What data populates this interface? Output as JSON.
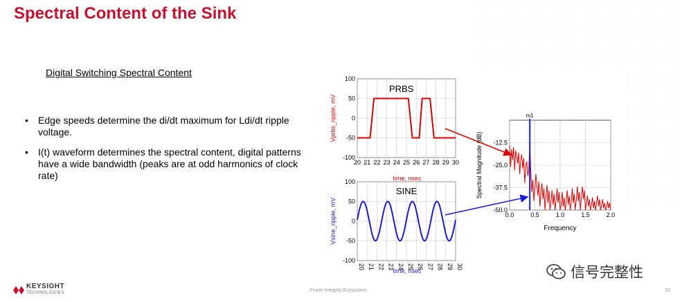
{
  "slide": {
    "title": "Spectral Content of the Sink",
    "subtitle": "Digital Switching Spectral Content",
    "bullets": [
      "Edge speeds determine the di/dt maximum for Ldi/dt ripple voltage.",
      "I(t) waveform determines the spectral content, digital patterns have a wide bandwidth (peaks are at odd harmonics of clock rate)"
    ],
    "footer": {
      "brand": "KEYSIGHT",
      "brand_sub": "TECHNOLOGIES",
      "center_text": "Power Integrity Ecosystem",
      "page_number": "10"
    },
    "watermark": "信号完整性",
    "colors": {
      "title": "#c8102e",
      "prbs": "#e00000",
      "sine": "#1a1adb",
      "spectrum": "#e00000"
    }
  },
  "chart_data": [
    {
      "type": "line",
      "label": "PRBS",
      "ylabel": "Vprbs_ripple, mV",
      "xlabel": "time, nsec",
      "xlim": [
        20,
        30
      ],
      "ylim": [
        -100,
        100
      ],
      "xticks": [
        "20",
        "21",
        "22",
        "23",
        "24",
        "25",
        "26",
        "27",
        "28",
        "29",
        "30"
      ],
      "yticks": [
        "100",
        "50",
        "0",
        "-50",
        "-100"
      ],
      "x": [
        20,
        21.3,
        21.7,
        25.2,
        25.6,
        26.3,
        26.6,
        27.0,
        27.4,
        27.8,
        30
      ],
      "y": [
        -50,
        -50,
        50,
        50,
        -50,
        -50,
        50,
        50,
        50,
        -50,
        -50
      ]
    },
    {
      "type": "line",
      "label": "SINE",
      "ylabel": "Vsine_ripple, mV",
      "xlabel": "time, nsec",
      "xlim": [
        20,
        30
      ],
      "ylim": [
        -100,
        100
      ],
      "xticks": [
        "20",
        "21",
        "22",
        "23",
        "24",
        "25",
        "26",
        "27",
        "28",
        "29",
        "30"
      ],
      "yticks": [
        "100",
        "50",
        "0",
        "-50",
        "-100"
      ],
      "amplitude": 50,
      "period_ns": 2.5,
      "phase_peak_ns": 20.6
    },
    {
      "type": "line",
      "ylabel": "Spectral Magnitude (dB)",
      "xlabel": "Frequency",
      "xlim": [
        0,
        2.0
      ],
      "ylim": [
        -50,
        0
      ],
      "xticks": [
        "0.0",
        "0.5",
        "1.0",
        "1.5",
        "2.0"
      ],
      "yticks": [
        "-12.5",
        "-25.0",
        "-37.5",
        "-50.0"
      ],
      "marker": {
        "label": "m1",
        "x": 0.4
      },
      "x": [
        0.0,
        0.02,
        0.04,
        0.06,
        0.08,
        0.1,
        0.12,
        0.14,
        0.16,
        0.18,
        0.2,
        0.22,
        0.24,
        0.26,
        0.28,
        0.3,
        0.32,
        0.34,
        0.36,
        0.38,
        0.4,
        0.42,
        0.44,
        0.46,
        0.48,
        0.5,
        0.52,
        0.54,
        0.56,
        0.58,
        0.6,
        0.62,
        0.64,
        0.66,
        0.68,
        0.7,
        0.72,
        0.74,
        0.76,
        0.78,
        0.8,
        0.82,
        0.84,
        0.86,
        0.88,
        0.9,
        0.92,
        0.94,
        0.96,
        0.98,
        1.0,
        1.02,
        1.04,
        1.06,
        1.08,
        1.1,
        1.12,
        1.14,
        1.16,
        1.18,
        1.2,
        1.22,
        1.24,
        1.26,
        1.28,
        1.3,
        1.32,
        1.34,
        1.36,
        1.38,
        1.4,
        1.42,
        1.44,
        1.46,
        1.48,
        1.5,
        1.52,
        1.54,
        1.56,
        1.58,
        1.6,
        1.62,
        1.64,
        1.66,
        1.68,
        1.7,
        1.72,
        1.74,
        1.76,
        1.78,
        1.8,
        1.82,
        1.84,
        1.86,
        1.88,
        1.9,
        1.92,
        1.94,
        1.96,
        1.98,
        2.0
      ],
      "y": [
        -14,
        -26,
        -16,
        -22,
        -15,
        -28,
        -17,
        -20,
        -24,
        -18,
        -30,
        -22,
        -19,
        -27,
        -21,
        -35,
        -25,
        -23,
        -31,
        -27,
        -14,
        -29,
        -40,
        -33,
        -45,
        -38,
        -30,
        -36,
        -42,
        -34,
        -48,
        -40,
        -35,
        -44,
        -38,
        -50,
        -42,
        -36,
        -46,
        -39,
        -50,
        -45,
        -39,
        -47,
        -41,
        -50,
        -44,
        -38,
        -46,
        -40,
        -50,
        -47,
        -40,
        -48,
        -43,
        -50,
        -46,
        -39,
        -47,
        -42,
        -50,
        -45,
        -38,
        -46,
        -41,
        -50,
        -44,
        -37,
        -45,
        -40,
        -50,
        -43,
        -37,
        -44,
        -39,
        -50,
        -46,
        -42,
        -48,
        -44,
        -50,
        -47,
        -43,
        -49,
        -45,
        -50,
        -46,
        -42,
        -48,
        -44,
        -50,
        -47,
        -44,
        -49,
        -46,
        -50,
        -48,
        -45,
        -49,
        -46,
        -50
      ]
    }
  ]
}
